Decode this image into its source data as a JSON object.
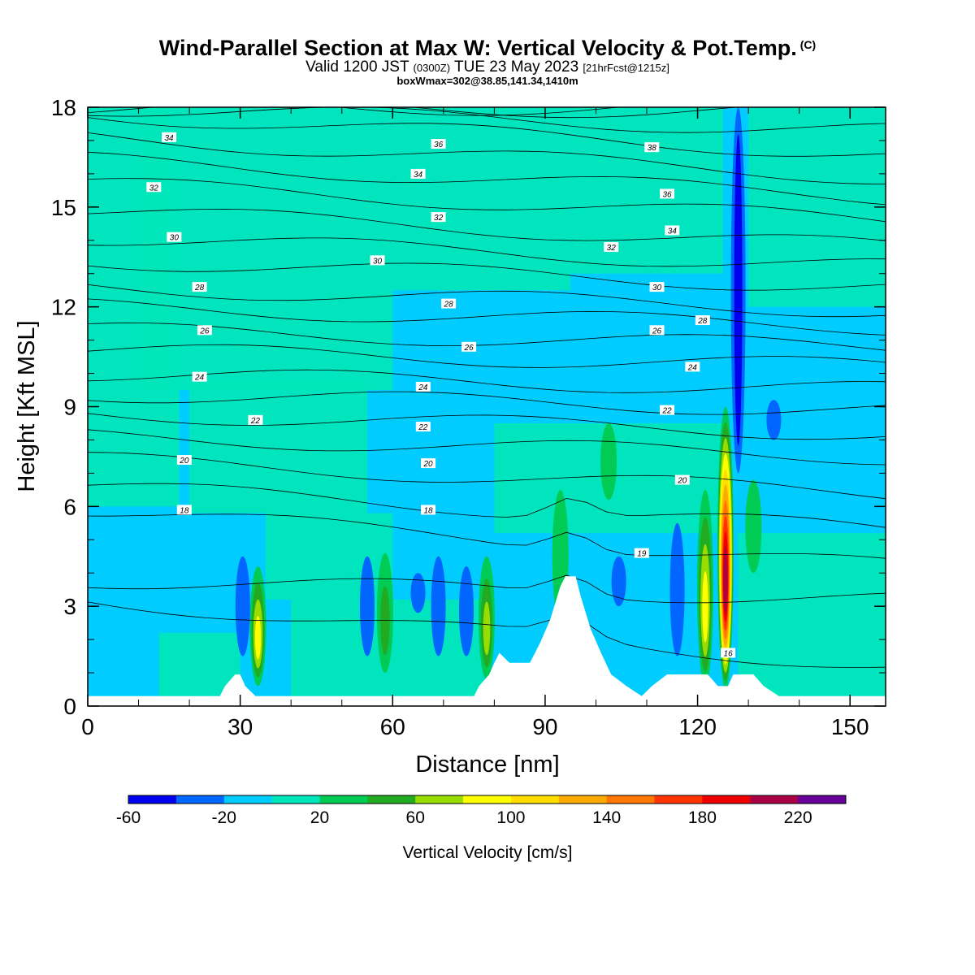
{
  "header": {
    "title": "Wind-Parallel Section at Max W: Vertical Velocity & Pot.Temp.",
    "copyright": "(C)",
    "subtitle_valid": "Valid 1200 JST",
    "subtitle_utc": "(0300Z)",
    "subtitle_date": "TUE 23 May 2023",
    "subtitle_fcst": "[21hrFcst@1215z]",
    "box_info": "boxWmax=302@38.85,141.34,1410m"
  },
  "chart_data": {
    "type": "heatmap",
    "xlabel": "Distance [nm]",
    "ylabel": "Height [Kft MSL]",
    "xlim": [
      0,
      157
    ],
    "ylim": [
      0,
      18
    ],
    "xticks": [
      0,
      30,
      60,
      90,
      120,
      150
    ],
    "yticks": [
      0,
      3,
      6,
      9,
      12,
      15,
      18
    ],
    "colorbar": {
      "label": "Vertical Velocity [cm/s]",
      "bounds": [
        -60,
        -40,
        -20,
        0,
        20,
        40,
        60,
        80,
        100,
        120,
        140,
        160,
        180,
        200,
        220,
        240
      ],
      "tick_labels": [
        "-60",
        "-20",
        "20",
        "60",
        "100",
        "140",
        "180",
        "220"
      ],
      "tick_values": [
        -60,
        -20,
        20,
        60,
        100,
        140,
        180,
        220
      ],
      "colors": [
        "#0000ee",
        "#0066ff",
        "#00ccff",
        "#00e6bb",
        "#00cc55",
        "#22aa22",
        "#99dd00",
        "#ffff00",
        "#ffdd00",
        "#ffaa00",
        "#ff7700",
        "#ff3300",
        "#ee0000",
        "#aa0044",
        "#660099"
      ]
    },
    "background_field": {
      "lower_layer_value": 10,
      "upper_layer_value": 10,
      "note_colors": [
        "#00ccff",
        "#00e6bb"
      ]
    },
    "updrafts": [
      {
        "x": 33.5,
        "base": 0.6,
        "top": 4.2,
        "max": 100
      },
      {
        "x": 58.5,
        "base": 1.0,
        "top": 4.6,
        "max": 45
      },
      {
        "x": 78.5,
        "base": 0.8,
        "top": 4.5,
        "max": 65
      },
      {
        "x": 93.0,
        "base": 2.5,
        "top": 6.5,
        "max": 35
      },
      {
        "x": 102.5,
        "base": 6.2,
        "top": 8.5,
        "max": 35
      },
      {
        "x": 121.5,
        "base": 0.6,
        "top": 6.5,
        "max": 90
      },
      {
        "x": 125.5,
        "base": 0.5,
        "top": 9.0,
        "max": 220
      },
      {
        "x": 131.0,
        "base": 4.0,
        "top": 6.8,
        "max": 35
      }
    ],
    "downdrafts": [
      {
        "x": 30.5,
        "base": 1.5,
        "top": 4.5,
        "min": -40
      },
      {
        "x": 55.0,
        "base": 1.5,
        "top": 4.5,
        "min": -25
      },
      {
        "x": 65.0,
        "base": 2.8,
        "top": 4.0,
        "min": -40
      },
      {
        "x": 69.0,
        "base": 1.5,
        "top": 4.5,
        "min": -40
      },
      {
        "x": 74.5,
        "base": 1.5,
        "top": 4.2,
        "min": -25
      },
      {
        "x": 104.5,
        "base": 3.0,
        "top": 4.5,
        "min": -40
      },
      {
        "x": 116.0,
        "base": 1.5,
        "top": 5.5,
        "min": -40
      },
      {
        "x": 128.0,
        "base": 7.0,
        "top": 18.0,
        "min": -60
      },
      {
        "x": 135.0,
        "base": 8.0,
        "top": 9.2,
        "min": -40
      }
    ],
    "terrain_kft": [
      {
        "x": 0,
        "h": 0.3
      },
      {
        "x": 26,
        "h": 0.3
      },
      {
        "x": 27,
        "h": 0.6
      },
      {
        "x": 29,
        "h": 0.95
      },
      {
        "x": 30,
        "h": 0.95
      },
      {
        "x": 31,
        "h": 0.6
      },
      {
        "x": 33,
        "h": 0.3
      },
      {
        "x": 76,
        "h": 0.3
      },
      {
        "x": 77,
        "h": 0.6
      },
      {
        "x": 79,
        "h": 0.95
      },
      {
        "x": 80,
        "h": 1.3
      },
      {
        "x": 81,
        "h": 1.6
      },
      {
        "x": 83,
        "h": 1.3
      },
      {
        "x": 87,
        "h": 1.3
      },
      {
        "x": 89,
        "h": 1.9
      },
      {
        "x": 91,
        "h": 2.6
      },
      {
        "x": 93,
        "h": 3.6
      },
      {
        "x": 94,
        "h": 3.9
      },
      {
        "x": 96,
        "h": 3.9
      },
      {
        "x": 97,
        "h": 3.3
      },
      {
        "x": 99,
        "h": 2.3
      },
      {
        "x": 101,
        "h": 1.6
      },
      {
        "x": 103,
        "h": 0.95
      },
      {
        "x": 106,
        "h": 0.6
      },
      {
        "x": 109,
        "h": 0.3
      },
      {
        "x": 111,
        "h": 0.6
      },
      {
        "x": 114,
        "h": 0.95
      },
      {
        "x": 122,
        "h": 0.95
      },
      {
        "x": 124,
        "h": 0.6
      },
      {
        "x": 126,
        "h": 0.6
      },
      {
        "x": 127,
        "h": 0.95
      },
      {
        "x": 131,
        "h": 0.95
      },
      {
        "x": 133,
        "h": 0.6
      },
      {
        "x": 136,
        "h": 0.3
      },
      {
        "x": 157,
        "h": 0.3
      }
    ],
    "theta_contours": [
      {
        "level": 16,
        "y_left": 3.2,
        "y_right": 1.2,
        "label": "16",
        "label_x": 126,
        "label_y": 1.6
      },
      {
        "level": 17,
        "y_left": 3.8,
        "y_right": 3.2
      },
      {
        "level": 18,
        "y_left": 5.9,
        "y_right": 4.2,
        "label": "18",
        "label_x": 19,
        "label_y": 5.9
      },
      {
        "level": 18,
        "y_left": 5.9,
        "y_right": 4.2,
        "label": "18",
        "label_x": 67,
        "label_y": 5.9
      },
      {
        "level": 19,
        "y_left": 6.6,
        "y_right": 5.3,
        "label": "19",
        "label_x": 109,
        "label_y": 4.6
      },
      {
        "level": 20,
        "y_left": 7.4,
        "y_right": 6.4,
        "label": "20",
        "label_x": 19,
        "label_y": 7.4
      },
      {
        "level": 20,
        "y_left": 7.4,
        "y_right": 6.4,
        "label": "20",
        "label_x": 67,
        "label_y": 7.3
      },
      {
        "level": 20,
        "y_left": 7.4,
        "y_right": 6.4,
        "label": "20",
        "label_x": 117,
        "label_y": 6.8
      },
      {
        "level": 21,
        "y_left": 8.1,
        "y_right": 7.5
      },
      {
        "level": 22,
        "y_left": 8.8,
        "y_right": 8.2,
        "label": "22",
        "label_x": 33,
        "label_y": 8.6
      },
      {
        "level": 22,
        "y_left": 8.8,
        "y_right": 8.2,
        "label": "22",
        "label_x": 66,
        "label_y": 8.4
      },
      {
        "level": 22,
        "y_left": 8.8,
        "y_right": 8.2,
        "label": "22",
        "label_x": 114,
        "label_y": 8.9
      },
      {
        "level": 23,
        "y_left": 9.4,
        "y_right": 8.9
      },
      {
        "level": 24,
        "y_left": 10.0,
        "y_right": 9.5,
        "label": "24",
        "label_x": 22,
        "label_y": 9.9
      },
      {
        "level": 24,
        "y_left": 10.0,
        "y_right": 9.5,
        "label": "24",
        "label_x": 66,
        "label_y": 9.6
      },
      {
        "level": 24,
        "y_left": 10.0,
        "y_right": 9.5,
        "label": "24",
        "label_x": 119,
        "label_y": 10.2
      },
      {
        "level": 25,
        "y_left": 10.7,
        "y_right": 10.2
      },
      {
        "level": 26,
        "y_left": 11.3,
        "y_right": 10.8,
        "label": "26",
        "label_x": 23,
        "label_y": 11.3
      },
      {
        "level": 26,
        "y_left": 11.3,
        "y_right": 10.8,
        "label": "26",
        "label_x": 75,
        "label_y": 10.8
      },
      {
        "level": 26,
        "y_left": 11.3,
        "y_right": 10.8,
        "label": "26",
        "label_x": 112,
        "label_y": 11.3
      },
      {
        "level": 27,
        "y_left": 12.0,
        "y_right": 11.4
      },
      {
        "level": 28,
        "y_left": 12.6,
        "y_right": 11.9,
        "label": "28",
        "label_x": 22,
        "label_y": 12.6
      },
      {
        "level": 28,
        "y_left": 12.6,
        "y_right": 11.9,
        "label": "28",
        "label_x": 71,
        "label_y": 12.1
      },
      {
        "level": 28,
        "y_left": 12.6,
        "y_right": 11.9,
        "label": "28",
        "label_x": 121,
        "label_y": 11.6
      },
      {
        "level": 29,
        "y_left": 13.4,
        "y_right": 12.6
      },
      {
        "level": 30,
        "y_left": 14.1,
        "y_right": 13.2,
        "label": "30",
        "label_x": 17,
        "label_y": 14.1
      },
      {
        "level": 30,
        "y_left": 14.1,
        "y_right": 13.2,
        "label": "30",
        "label_x": 57,
        "label_y": 13.4
      },
      {
        "level": 30,
        "y_left": 14.1,
        "y_right": 13.2,
        "label": "30",
        "label_x": 112,
        "label_y": 12.6
      },
      {
        "level": 31,
        "y_left": 14.9,
        "y_right": 13.8
      },
      {
        "level": 32,
        "y_left": 15.7,
        "y_right": 14.6,
        "label": "32",
        "label_x": 13,
        "label_y": 15.6
      },
      {
        "level": 32,
        "y_left": 15.7,
        "y_right": 14.6,
        "label": "32",
        "label_x": 69,
        "label_y": 14.7
      },
      {
        "level": 32,
        "y_left": 15.7,
        "y_right": 14.6,
        "label": "32",
        "label_x": 103,
        "label_y": 13.8
      },
      {
        "level": 33,
        "y_left": 16.4,
        "y_right": 15.3
      },
      {
        "level": 34,
        "y_left": 17.1,
        "y_right": 15.9,
        "label": "34",
        "label_x": 16,
        "label_y": 17.1
      },
      {
        "level": 34,
        "y_left": 17.1,
        "y_right": 15.9,
        "label": "34",
        "label_x": 65,
        "label_y": 16.0
      },
      {
        "level": 34,
        "y_left": 17.1,
        "y_right": 15.9,
        "label": "34",
        "label_x": 115,
        "label_y": 14.3
      },
      {
        "level": 35,
        "y_left": 17.8,
        "y_right": 16.6
      },
      {
        "level": 36,
        "y_left": 18.0,
        "y_right": 17.3,
        "label": "36",
        "label_x": 69,
        "label_y": 16.9
      },
      {
        "level": 36,
        "y_left": 18.0,
        "y_right": 17.3,
        "label": "36",
        "label_x": 114,
        "label_y": 15.4
      },
      {
        "level": 37,
        "y_left": 18.0,
        "y_right": 17.9
      },
      {
        "level": 38,
        "y_left": 18.0,
        "y_right": 18.0,
        "label": "38",
        "label_x": 111,
        "label_y": 16.8
      }
    ]
  }
}
